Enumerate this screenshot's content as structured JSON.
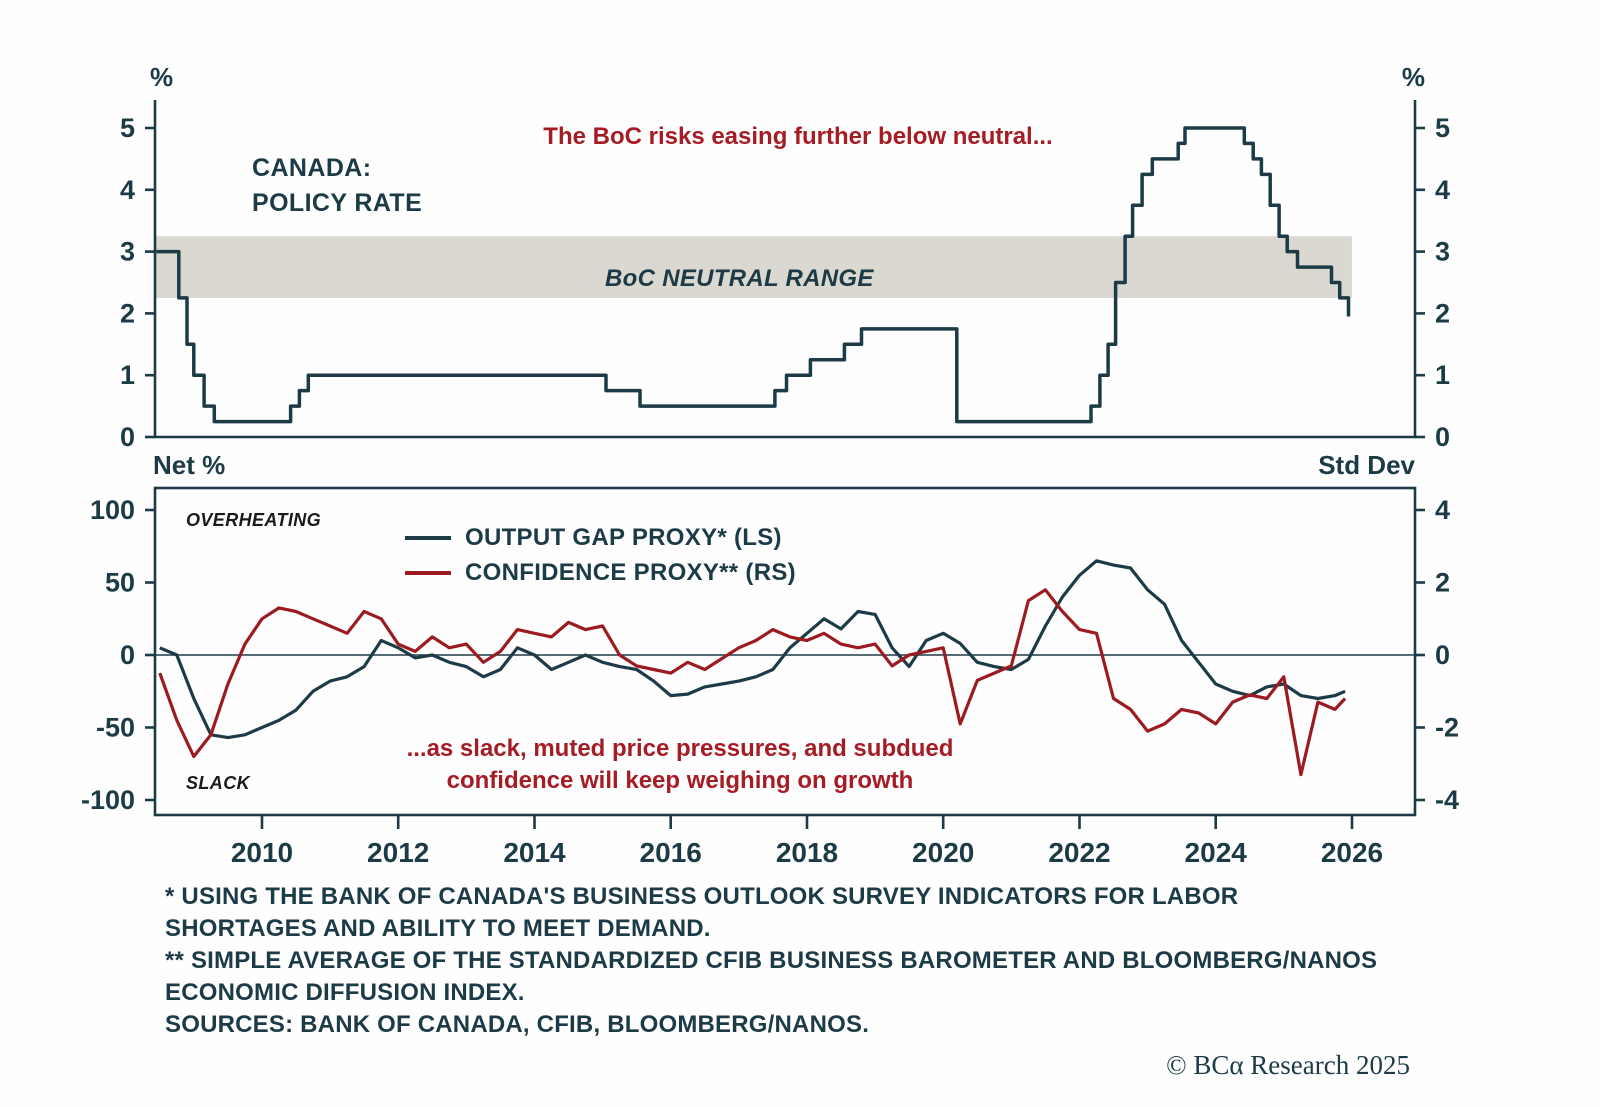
{
  "colors": {
    "dark_teal": "#1d3b46",
    "red_line": "#9c1b21",
    "red_text": "#a51c24",
    "band_gray": "#dbd8d1",
    "zone_text": "#1a1a1a"
  },
  "chart_data": [
    {
      "type": "line",
      "panel": "top",
      "title": "CANADA:\nPOLICY RATE",
      "unit_left": "%",
      "unit_right": "%",
      "annotation": "The BoC risks easing further below neutral...",
      "band": {
        "label": "BoC NEUTRAL RANGE",
        "from": 2.25,
        "to": 3.25,
        "x_start": 2008.43,
        "x_end": 2026.0
      },
      "ylim": [
        0,
        5
      ],
      "yticks": [
        0,
        1,
        2,
        3,
        4,
        5
      ],
      "xlim": [
        2008.43,
        2026.92
      ],
      "series": [
        {
          "name": "CANADA POLICY RATE",
          "step": true,
          "color": "#1d3b46",
          "x": [
            2008.45,
            2008.78,
            2008.9,
            2009.0,
            2009.15,
            2009.3,
            2010.42,
            2010.55,
            2010.68,
            2015.05,
            2015.55,
            2017.53,
            2017.7,
            2018.05,
            2018.55,
            2018.8,
            2020.2,
            2022.17,
            2022.3,
            2022.42,
            2022.53,
            2022.67,
            2022.78,
            2022.92,
            2023.07,
            2023.45,
            2023.55,
            2024.42,
            2024.55,
            2024.67,
            2024.8,
            2024.93,
            2025.05,
            2025.2,
            2025.7,
            2025.82,
            2025.95
          ],
          "y": [
            3.0,
            2.25,
            1.5,
            1.0,
            0.5,
            0.25,
            0.5,
            0.75,
            1.0,
            0.75,
            0.5,
            0.75,
            1.0,
            1.25,
            1.5,
            1.75,
            0.25,
            0.5,
            1.0,
            1.5,
            2.5,
            3.25,
            3.75,
            4.25,
            4.5,
            4.75,
            5.0,
            4.75,
            4.5,
            4.25,
            3.75,
            3.25,
            3.0,
            2.75,
            2.5,
            2.25,
            1.95
          ]
        }
      ]
    },
    {
      "type": "line",
      "panel": "bottom",
      "unit_left": "Net %",
      "unit_right": "Std Dev",
      "zone_top": "OVERHEATING",
      "zone_bottom": "SLACK",
      "annotation": "...as slack, muted price pressures, and subdued\nconfidence will keep weighing on growth",
      "ylim_left": [
        -100,
        100
      ],
      "ylim_right": [
        -4,
        4
      ],
      "yticks_left": [
        100,
        50,
        0,
        -50,
        -100
      ],
      "yticks_right": [
        4,
        2,
        0,
        -2,
        -4
      ],
      "xticks": [
        2010,
        2012,
        2014,
        2016,
        2018,
        2020,
        2022,
        2024,
        2026
      ],
      "legend": [
        {
          "label": "OUTPUT GAP PROXY* (LS)",
          "color": "#1d3b46"
        },
        {
          "label": "CONFIDENCE PROXY** (RS)",
          "color": "#9c1b21"
        }
      ],
      "series": [
        {
          "name": "OUTPUT GAP PROXY* (LS)",
          "axis": "left",
          "color": "#1d3b46",
          "x": [
            2008.5,
            2008.75,
            2009.0,
            2009.25,
            2009.5,
            2009.75,
            2010.0,
            2010.25,
            2010.5,
            2010.75,
            2011.0,
            2011.25,
            2011.5,
            2011.75,
            2012.0,
            2012.25,
            2012.5,
            2012.75,
            2013.0,
            2013.25,
            2013.5,
            2013.75,
            2014.0,
            2014.25,
            2014.5,
            2014.75,
            2015.0,
            2015.25,
            2015.5,
            2015.75,
            2016.0,
            2016.25,
            2016.5,
            2016.75,
            2017.0,
            2017.25,
            2017.5,
            2017.75,
            2018.0,
            2018.25,
            2018.5,
            2018.75,
            2019.0,
            2019.25,
            2019.5,
            2019.75,
            2020.0,
            2020.25,
            2020.5,
            2020.75,
            2021.0,
            2021.25,
            2021.5,
            2021.75,
            2022.0,
            2022.25,
            2022.5,
            2022.75,
            2023.0,
            2023.25,
            2023.5,
            2023.75,
            2024.0,
            2024.25,
            2024.5,
            2024.75,
            2025.0,
            2025.25,
            2025.5,
            2025.75,
            2025.9
          ],
          "y": [
            5,
            0,
            -30,
            -55,
            -57,
            -55,
            -50,
            -45,
            -38,
            -25,
            -18,
            -15,
            -8,
            10,
            5,
            -2,
            0,
            -5,
            -8,
            -15,
            -10,
            5,
            0,
            -10,
            -5,
            0,
            -5,
            -8,
            -10,
            -18,
            -28,
            -27,
            -22,
            -20,
            -18,
            -15,
            -10,
            5,
            15,
            25,
            18,
            30,
            28,
            5,
            -8,
            10,
            15,
            8,
            -5,
            -8,
            -10,
            -3,
            20,
            40,
            55,
            65,
            62,
            60,
            45,
            35,
            10,
            -5,
            -20,
            -25,
            -28,
            -22,
            -20,
            -28,
            -30,
            -28,
            -25
          ]
        },
        {
          "name": "CONFIDENCE PROXY** (RS)",
          "axis": "right",
          "color": "#9c1b21",
          "x": [
            2008.5,
            2008.75,
            2009.0,
            2009.25,
            2009.5,
            2009.75,
            2010.0,
            2010.25,
            2010.5,
            2010.75,
            2011.0,
            2011.25,
            2011.5,
            2011.75,
            2012.0,
            2012.25,
            2012.5,
            2012.75,
            2013.0,
            2013.25,
            2013.5,
            2013.75,
            2014.0,
            2014.25,
            2014.5,
            2014.75,
            2015.0,
            2015.25,
            2015.5,
            2015.75,
            2016.0,
            2016.25,
            2016.5,
            2016.75,
            2017.0,
            2017.25,
            2017.5,
            2017.75,
            2018.0,
            2018.25,
            2018.5,
            2018.75,
            2019.0,
            2019.25,
            2019.5,
            2019.75,
            2020.0,
            2020.25,
            2020.5,
            2020.75,
            2021.0,
            2021.25,
            2021.5,
            2021.75,
            2022.0,
            2022.25,
            2022.5,
            2022.75,
            2023.0,
            2023.25,
            2023.5,
            2023.75,
            2024.0,
            2024.25,
            2024.5,
            2024.75,
            2025.0,
            2025.25,
            2025.5,
            2025.75,
            2025.9
          ],
          "y": [
            -0.5,
            -1.8,
            -2.8,
            -2.2,
            -0.8,
            0.3,
            1.0,
            1.3,
            1.2,
            1.0,
            0.8,
            0.6,
            1.2,
            1.0,
            0.3,
            0.1,
            0.5,
            0.2,
            0.3,
            -0.2,
            0.1,
            0.7,
            0.6,
            0.5,
            0.9,
            0.7,
            0.8,
            0.0,
            -0.3,
            -0.4,
            -0.5,
            -0.2,
            -0.4,
            -0.1,
            0.2,
            0.4,
            0.7,
            0.5,
            0.4,
            0.6,
            0.3,
            0.2,
            0.3,
            -0.3,
            0.0,
            0.1,
            0.2,
            -1.9,
            -0.7,
            -0.5,
            -0.3,
            1.5,
            1.8,
            1.2,
            0.7,
            0.6,
            -1.2,
            -1.5,
            -2.1,
            -1.9,
            -1.5,
            -1.6,
            -1.9,
            -1.3,
            -1.1,
            -1.2,
            -0.6,
            -3.3,
            -1.3,
            -1.5,
            -1.2
          ]
        }
      ]
    }
  ],
  "footnotes": {
    "line1": "* USING THE BANK OF CANADA'S BUSINESS OUTLOOK SURVEY INDICATORS FOR LABOR\nSHORTAGES AND ABILITY TO MEET DEMAND.",
    "line2": "** SIMPLE AVERAGE OF THE STANDARDIZED CFIB BUSINESS BAROMETER AND BLOOMBERG/NANOS\nECONOMIC DIFFUSION INDEX.",
    "line3": "SOURCES: BANK OF CANADA, CFIB, BLOOMBERG/NANOS."
  },
  "copyright": "© BCα Research 2025"
}
